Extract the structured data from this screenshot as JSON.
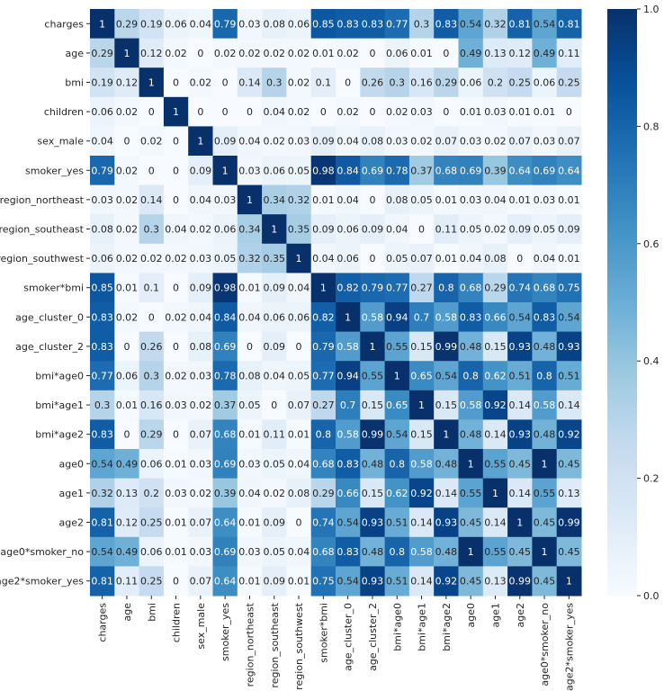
{
  "chart_data": {
    "type": "heatmap",
    "labels": [
      "charges",
      "age",
      "bmi",
      "children",
      "sex_male",
      "smoker_yes",
      "region_northeast",
      "region_southeast",
      "region_southwest",
      "smoker*bmi",
      "age_cluster_0",
      "age_cluster_2",
      "bmi*age0",
      "bmi*age1",
      "bmi*age2",
      "age0",
      "age1",
      "age2",
      "age0*smoker_no",
      "age2*smoker_yes"
    ],
    "values": [
      [
        1,
        0.29,
        0.19,
        0.06,
        0.04,
        0.79,
        0.03,
        0.08,
        0.06,
        0.85,
        0.83,
        0.83,
        0.77,
        0.3,
        0.83,
        0.54,
        0.32,
        0.81,
        0.54,
        0.81
      ],
      [
        0.29,
        1,
        0.12,
        0.02,
        0,
        0.02,
        0.02,
        0.02,
        0.02,
        0.01,
        0.02,
        0,
        0.06,
        0.01,
        0,
        0.49,
        0.13,
        0.12,
        0.49,
        0.11
      ],
      [
        0.19,
        0.12,
        1,
        0,
        0.02,
        0,
        0.14,
        0.3,
        0.02,
        0.1,
        0,
        0.26,
        0.3,
        0.16,
        0.29,
        0.06,
        0.2,
        0.25,
        0.06,
        0.25
      ],
      [
        0.06,
        0.02,
        0,
        1,
        0,
        0,
        0,
        0.04,
        0.02,
        0,
        0.02,
        0,
        0.02,
        0.03,
        0,
        0.01,
        0.03,
        0.01,
        0.01,
        0
      ],
      [
        0.04,
        0,
        0.02,
        0,
        1,
        0.09,
        0.04,
        0.02,
        0.03,
        0.09,
        0.04,
        0.08,
        0.03,
        0.02,
        0.07,
        0.03,
        0.02,
        0.07,
        0.03,
        0.07
      ],
      [
        0.79,
        0.02,
        0,
        0,
        0.09,
        1,
        0.03,
        0.06,
        0.05,
        0.98,
        0.84,
        0.69,
        0.78,
        0.37,
        0.68,
        0.69,
        0.39,
        0.64,
        0.69,
        0.64
      ],
      [
        0.03,
        0.02,
        0.14,
        0,
        0.04,
        0.03,
        1,
        0.34,
        0.32,
        0.01,
        0.04,
        0,
        0.08,
        0.05,
        0.01,
        0.03,
        0.04,
        0.01,
        0.03,
        0.01
      ],
      [
        0.08,
        0.02,
        0.3,
        0.04,
        0.02,
        0.06,
        0.34,
        1,
        0.35,
        0.09,
        0.06,
        0.09,
        0.04,
        0,
        0.11,
        0.05,
        0.02,
        0.09,
        0.05,
        0.09
      ],
      [
        0.06,
        0.02,
        0.02,
        0.02,
        0.03,
        0.05,
        0.32,
        0.35,
        1,
        0.04,
        0.06,
        0,
        0.05,
        0.07,
        0.01,
        0.04,
        0.08,
        0,
        0.04,
        0.01
      ],
      [
        0.85,
        0.01,
        0.1,
        0,
        0.09,
        0.98,
        0.01,
        0.09,
        0.04,
        1,
        0.82,
        0.79,
        0.77,
        0.27,
        0.8,
        0.68,
        0.29,
        0.74,
        0.68,
        0.75
      ],
      [
        0.83,
        0.02,
        0,
        0.02,
        0.04,
        0.84,
        0.04,
        0.06,
        0.06,
        0.82,
        1,
        0.58,
        0.94,
        0.7,
        0.58,
        0.83,
        0.66,
        0.54,
        0.83,
        0.54
      ],
      [
        0.83,
        0,
        0.26,
        0,
        0.08,
        0.69,
        0,
        0.09,
        0,
        0.79,
        0.58,
        1,
        0.55,
        0.15,
        0.99,
        0.48,
        0.15,
        0.93,
        0.48,
        0.93
      ],
      [
        0.77,
        0.06,
        0.3,
        0.02,
        0.03,
        0.78,
        0.08,
        0.04,
        0.05,
        0.77,
        0.94,
        0.55,
        1,
        0.65,
        0.54,
        0.8,
        0.62,
        0.51,
        0.8,
        0.51
      ],
      [
        0.3,
        0.01,
        0.16,
        0.03,
        0.02,
        0.37,
        0.05,
        0,
        0.07,
        0.27,
        0.7,
        0.15,
        0.65,
        1,
        0.15,
        0.58,
        0.92,
        0.14,
        0.58,
        0.14
      ],
      [
        0.83,
        0,
        0.29,
        0,
        0.07,
        0.68,
        0.01,
        0.11,
        0.01,
        0.8,
        0.58,
        0.99,
        0.54,
        0.15,
        1,
        0.48,
        0.14,
        0.93,
        0.48,
        0.92
      ],
      [
        0.54,
        0.49,
        0.06,
        0.01,
        0.03,
        0.69,
        0.03,
        0.05,
        0.04,
        0.68,
        0.83,
        0.48,
        0.8,
        0.58,
        0.48,
        1,
        0.55,
        0.45,
        1,
        0.45
      ],
      [
        0.32,
        0.13,
        0.2,
        0.03,
        0.02,
        0.39,
        0.04,
        0.02,
        0.08,
        0.29,
        0.66,
        0.15,
        0.62,
        0.92,
        0.14,
        0.55,
        1,
        0.14,
        0.55,
        0.13
      ],
      [
        0.81,
        0.12,
        0.25,
        0.01,
        0.07,
        0.64,
        0.01,
        0.09,
        0,
        0.74,
        0.54,
        0.93,
        0.51,
        0.14,
        0.93,
        0.45,
        0.14,
        1,
        0.45,
        0.99
      ],
      [
        0.54,
        0.49,
        0.06,
        0.01,
        0.03,
        0.69,
        0.03,
        0.05,
        0.04,
        0.68,
        0.83,
        0.48,
        0.8,
        0.58,
        0.48,
        1,
        0.55,
        0.45,
        1,
        0.45
      ],
      [
        0.81,
        0.11,
        0.25,
        0,
        0.07,
        0.64,
        0.01,
        0.09,
        0.01,
        0.75,
        0.54,
        0.93,
        0.51,
        0.14,
        0.92,
        0.45,
        0.13,
        0.99,
        0.45,
        1
      ]
    ],
    "colorbar": {
      "min": 0,
      "max": 1,
      "ticks": [
        "0.0",
        "0.2",
        "0.4",
        "0.6",
        "0.8",
        "1.0"
      ],
      "colormap": "Blues",
      "colors": [
        "#f7fbff",
        "#deebf7",
        "#c6dbef",
        "#9ecae1",
        "#6baed6",
        "#4292c6",
        "#2171b5",
        "#08519c",
        "#08306b"
      ]
    }
  }
}
